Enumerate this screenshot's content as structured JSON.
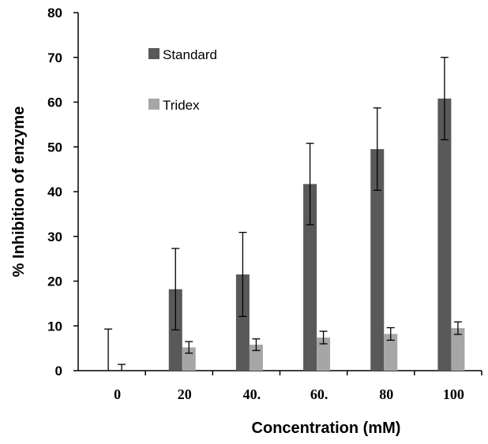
{
  "chart_data": {
    "type": "bar",
    "title": "",
    "xlabel": "Concentration (mM)",
    "ylabel": "% Inhibition of enzyme",
    "categories": [
      "0",
      "20",
      "40.",
      "60.",
      "80",
      "100"
    ],
    "ylim": [
      0,
      80
    ],
    "yticks": [
      0,
      10,
      20,
      30,
      40,
      50,
      60,
      70,
      80
    ],
    "grid": false,
    "legend_position": "top-left",
    "series": [
      {
        "name": "Standard",
        "color": "#595959",
        "values": [
          0,
          18.2,
          21.5,
          41.7,
          49.5,
          60.8
        ],
        "errors": [
          9.3,
          9.1,
          9.4,
          9.1,
          9.2,
          9.2
        ]
      },
      {
        "name": "Tridex",
        "color": "#a6a6a6",
        "values": [
          0,
          5.2,
          5.8,
          7.4,
          8.2,
          9.5
        ],
        "errors": [
          1.4,
          1.3,
          1.3,
          1.4,
          1.4,
          1.4
        ]
      }
    ]
  }
}
